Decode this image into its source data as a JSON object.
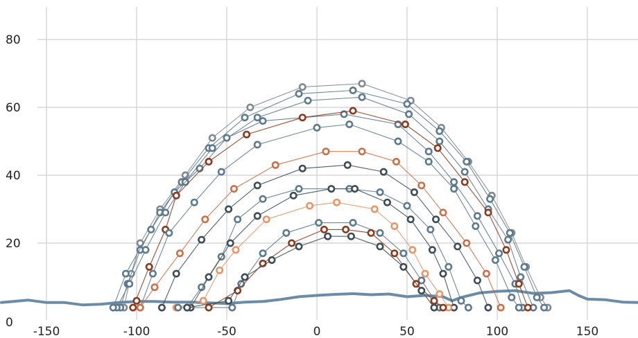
{
  "chart_data": {
    "type": "line",
    "title": "",
    "xlabel": "",
    "ylabel": "",
    "xlim": [
      -175,
      180
    ],
    "ylim": [
      0,
      90
    ],
    "x_ticks": [
      -150,
      -100,
      -50,
      0,
      50,
      100,
      150
    ],
    "x_tick_labels": [
      "-150",
      "-100",
      "-50",
      "0",
      "50",
      "100",
      "150"
    ],
    "y_ticks": [
      0,
      20,
      40,
      60,
      80
    ],
    "y_tick_labels": [
      "0",
      "20",
      "40",
      "60",
      "80"
    ],
    "grid": true,
    "legend": "none",
    "colors": {
      "terrain": "#6b8ca6",
      "grey": "#7f8a90",
      "dark": "#3e4c54",
      "slate": "#5d7a8c",
      "rust": "#8a3a1e",
      "copper": "#c8704a",
      "salmon": "#e8956a"
    },
    "terrain": {
      "x": [
        -175,
        -160,
        -150,
        -140,
        -130,
        -120,
        -110,
        -100,
        -90,
        -80,
        -70,
        -60,
        -50,
        -40,
        -30,
        -20,
        -10,
        0,
        10,
        20,
        30,
        40,
        50,
        60,
        70,
        75,
        80,
        90,
        100,
        110,
        120,
        130,
        140,
        145,
        150,
        160,
        170,
        180
      ],
      "y": [
        2.5,
        3.2,
        2.5,
        2.5,
        1.8,
        2.0,
        2.5,
        2.8,
        2.8,
        2.6,
        2.6,
        2.4,
        2.2,
        2.6,
        2.8,
        3.4,
        4.2,
        4.6,
        4.9,
        5.1,
        4.8,
        5.0,
        4.2,
        4.6,
        4.2,
        3.0,
        4.0,
        5.3,
        5.8,
        6.0,
        5.2,
        5.4,
        6.0,
        4.6,
        3.5,
        3.3,
        2.6,
        2.5
      ]
    },
    "series": [
      {
        "color": "#7f8a90",
        "points": [
          [
            -107,
            1
          ],
          [
            -103,
            11
          ],
          [
            -98,
            20
          ],
          [
            -87,
            30
          ],
          [
            -73,
            40
          ],
          [
            -58,
            51
          ],
          [
            -37,
            60
          ],
          [
            -8,
            66
          ],
          [
            25,
            67
          ],
          [
            52,
            62
          ],
          [
            69,
            54
          ],
          [
            84,
            44
          ],
          [
            97,
            34
          ],
          [
            108,
            23
          ],
          [
            116,
            13
          ],
          [
            124,
            4
          ],
          [
            128,
            1
          ]
        ]
      },
      {
        "color": "#5d7a8c",
        "points": [
          [
            -109,
            1
          ],
          [
            -105,
            8
          ],
          [
            -98,
            18
          ],
          [
            -87,
            29
          ],
          [
            -75,
            38
          ],
          [
            -60,
            48
          ],
          [
            -40,
            57
          ],
          [
            -10,
            64
          ],
          [
            20,
            65
          ],
          [
            50,
            61
          ],
          [
            68,
            53
          ],
          [
            83,
            44
          ],
          [
            96,
            33
          ],
          [
            107,
            23
          ],
          [
            115,
            13
          ],
          [
            122,
            4
          ],
          [
            126,
            1
          ]
        ]
      },
      {
        "color": "#5d7a8c",
        "points": [
          [
            -111,
            1
          ],
          [
            -104,
            8
          ],
          [
            -95,
            18
          ],
          [
            -84,
            29
          ],
          [
            -73,
            38
          ],
          [
            -58,
            48
          ],
          [
            -33,
            57
          ],
          [
            -5,
            62
          ],
          [
            25,
            63
          ],
          [
            51,
            58
          ],
          [
            68,
            50
          ],
          [
            82,
            41
          ],
          [
            95,
            30
          ],
          [
            106,
            21
          ],
          [
            113,
            10
          ],
          [
            120,
            1
          ]
        ]
      },
      {
        "color": "#5d7a8c",
        "points": [
          [
            -113,
            1
          ],
          [
            -106,
            11
          ],
          [
            -92,
            24
          ],
          [
            -79,
            35
          ],
          [
            -65,
            42
          ],
          [
            -50,
            51
          ],
          [
            -30,
            56
          ],
          [
            15,
            58
          ],
          [
            45,
            55
          ],
          [
            62,
            47
          ],
          [
            76,
            38
          ],
          [
            89,
            28
          ],
          [
            101,
            17
          ],
          [
            110,
            8
          ],
          [
            114,
            1
          ]
        ]
      },
      {
        "color": "#8a3a1e",
        "points": [
          [
            -100,
            3
          ],
          [
            -102,
            1
          ],
          [
            -93,
            13
          ],
          [
            -84,
            24
          ],
          [
            -78,
            34
          ],
          [
            -60,
            44
          ],
          [
            -39,
            52
          ],
          [
            -8,
            57
          ],
          [
            20,
            59
          ],
          [
            49,
            55
          ],
          [
            67,
            48
          ],
          [
            82,
            38
          ],
          [
            95,
            29
          ],
          [
            105,
            18
          ],
          [
            112,
            8
          ],
          [
            117,
            1
          ]
        ]
      },
      {
        "color": "#5d7a8c",
        "points": [
          [
            -98,
            1
          ],
          [
            -91,
            11
          ],
          [
            -82,
            23
          ],
          [
            -68,
            32
          ],
          [
            -53,
            41
          ],
          [
            -33,
            49
          ],
          [
            0,
            54
          ],
          [
            18,
            55
          ],
          [
            45,
            50
          ],
          [
            62,
            44
          ],
          [
            76,
            36
          ],
          [
            88,
            25
          ],
          [
            99,
            15
          ],
          [
            108,
            4
          ],
          [
            112,
            1
          ]
        ]
      },
      {
        "color": "#c8704a",
        "points": [
          [
            -98,
            1
          ],
          [
            -90,
            7
          ],
          [
            -76,
            17
          ],
          [
            -62,
            27
          ],
          [
            -46,
            36
          ],
          [
            -23,
            43
          ],
          [
            5,
            47
          ],
          [
            25,
            47
          ],
          [
            44,
            44
          ],
          [
            58,
            37
          ],
          [
            70,
            29
          ],
          [
            83,
            20
          ],
          [
            94,
            11
          ],
          [
            102,
            1
          ]
        ]
      },
      {
        "color": "#3e4c54",
        "points": [
          [
            -86,
            1
          ],
          [
            -78,
            11
          ],
          [
            -64,
            21
          ],
          [
            -49,
            30
          ],
          [
            -33,
            37
          ],
          [
            -8,
            42
          ],
          [
            17,
            43
          ],
          [
            37,
            41
          ],
          [
            54,
            35
          ],
          [
            66,
            27
          ],
          [
            78,
            19
          ],
          [
            89,
            9
          ],
          [
            95,
            1
          ]
        ]
      },
      {
        "color": "#5d7a8c",
        "points": [
          [
            -72,
            1
          ],
          [
            -64,
            7
          ],
          [
            -53,
            16
          ],
          [
            -44,
            27
          ],
          [
            -30,
            33
          ],
          [
            -10,
            36
          ],
          [
            18,
            36
          ],
          [
            35,
            35
          ],
          [
            50,
            31
          ],
          [
            63,
            24
          ],
          [
            73,
            13
          ],
          [
            80,
            3
          ],
          [
            84,
            1
          ]
        ]
      },
      {
        "color": "#3e4c54",
        "points": [
          [
            -70,
            1
          ],
          [
            -60,
            10
          ],
          [
            -48,
            20
          ],
          [
            -33,
            28
          ],
          [
            -13,
            34
          ],
          [
            8,
            36
          ],
          [
            21,
            36
          ],
          [
            39,
            32
          ],
          [
            52,
            27
          ],
          [
            64,
            18
          ],
          [
            70,
            11
          ],
          [
            76,
            1
          ]
        ]
      },
      {
        "color": "#e8956a",
        "points": [
          [
            -78,
            1
          ],
          [
            -63,
            3
          ],
          [
            -54,
            12
          ],
          [
            -45,
            18
          ],
          [
            -28,
            27
          ],
          [
            -4,
            31
          ],
          [
            11,
            32
          ],
          [
            32,
            30
          ],
          [
            43,
            25
          ],
          [
            53,
            18
          ],
          [
            60,
            11
          ],
          [
            68,
            5
          ],
          [
            73,
            1
          ]
        ]
      },
      {
        "color": "#5d7a8c",
        "points": [
          [
            -77,
            1
          ],
          [
            -47,
            1
          ],
          [
            -42,
            8
          ],
          [
            -30,
            17
          ],
          [
            -17,
            23
          ],
          [
            1,
            26
          ],
          [
            20,
            26
          ],
          [
            35,
            23
          ],
          [
            48,
            17
          ],
          [
            58,
            9
          ],
          [
            68,
            1
          ]
        ]
      },
      {
        "color": "#8a3a1e",
        "points": [
          [
            -60,
            1
          ],
          [
            -44,
            6
          ],
          [
            -30,
            14
          ],
          [
            -14,
            20
          ],
          [
            4,
            24
          ],
          [
            16,
            24
          ],
          [
            30,
            23
          ],
          [
            43,
            17
          ],
          [
            55,
            8
          ],
          [
            65,
            3
          ],
          [
            70,
            1
          ]
        ]
      },
      {
        "color": "#3e4c54",
        "points": [
          [
            -72,
            1
          ],
          [
            -49,
            3
          ],
          [
            -40,
            10
          ],
          [
            -25,
            15
          ],
          [
            -10,
            19
          ],
          [
            6,
            22
          ],
          [
            19,
            22
          ],
          [
            35,
            19
          ],
          [
            48,
            13
          ],
          [
            58,
            6
          ],
          [
            65,
            1
          ]
        ]
      }
    ]
  }
}
